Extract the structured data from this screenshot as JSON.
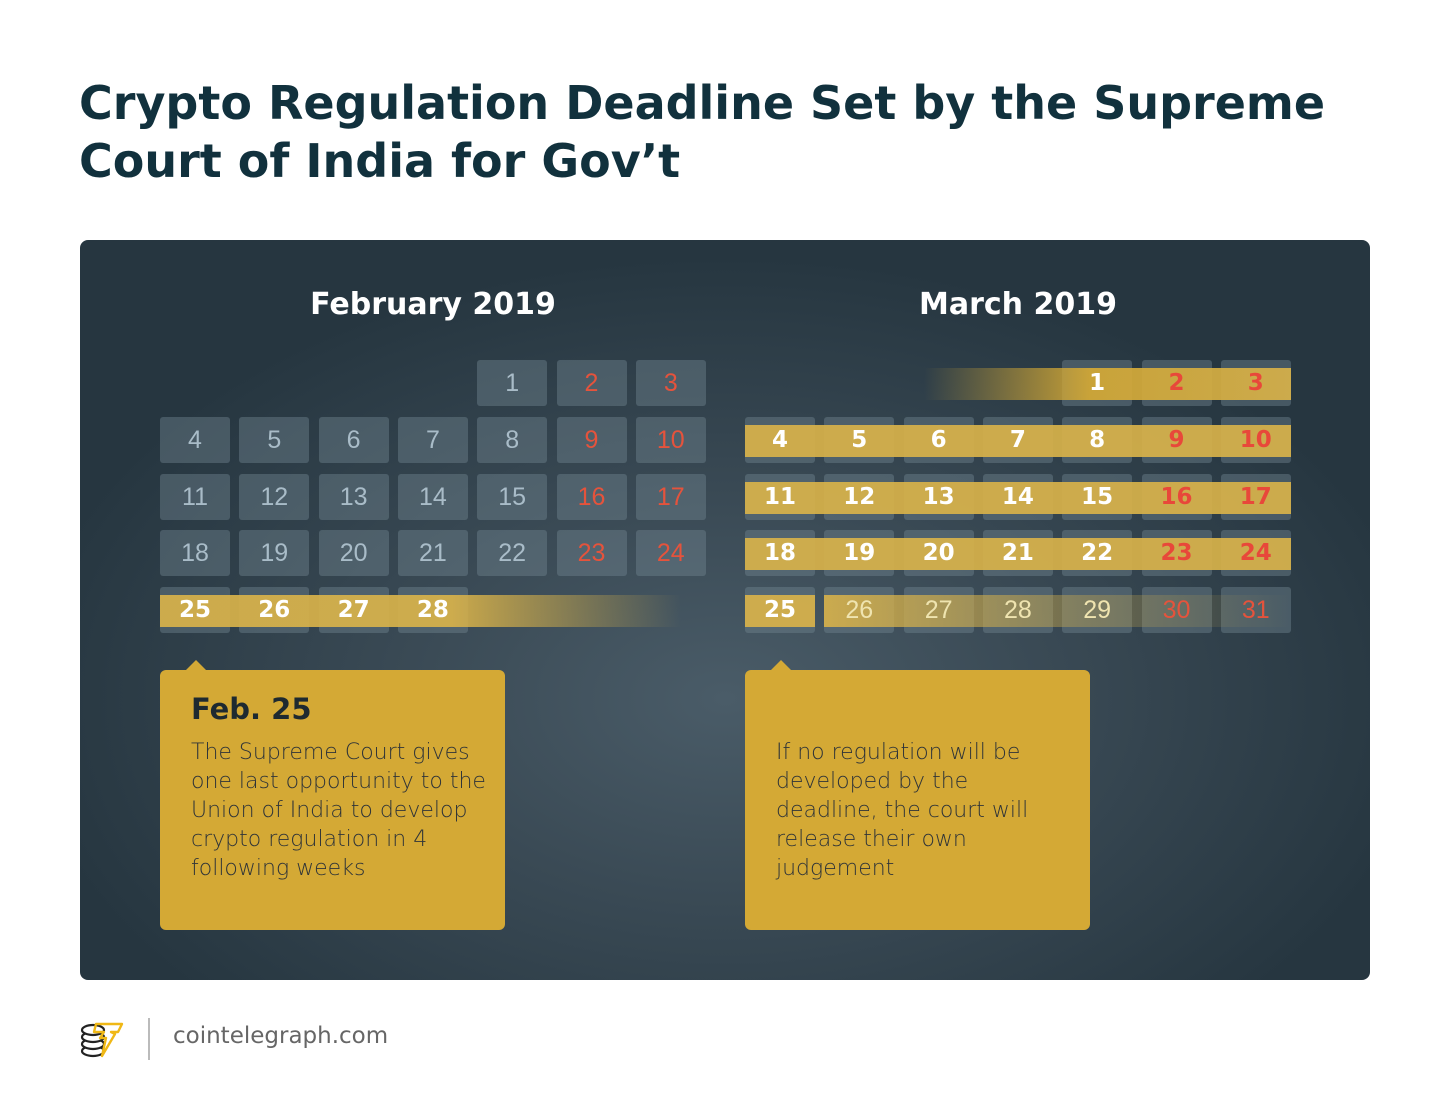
{
  "title": "Crypto Regulation Deadline Set by the Supreme Court of India for Gov’t",
  "colors": {
    "gold": "#d4a935",
    "weekend_red": "#e5533c",
    "panel": "#2f3f4a",
    "title": "#11313d"
  },
  "calendars": [
    {
      "month": "February 2019",
      "start_col": 4,
      "days": 28,
      "highlighted": [
        25,
        26,
        27,
        28
      ],
      "faded": []
    },
    {
      "month": "March 2019",
      "start_col": 4,
      "days": 31,
      "highlighted": [
        1,
        2,
        3,
        4,
        5,
        6,
        7,
        8,
        9,
        10,
        11,
        12,
        13,
        14,
        15,
        16,
        17,
        18,
        19,
        20,
        21,
        22,
        23,
        24,
        25
      ],
      "faded": [
        26,
        27,
        28,
        29,
        30,
        31
      ]
    }
  ],
  "callouts": [
    {
      "heading": "Feb. 25",
      "text": "The Supreme Court gives one last opportunity to the Union of India to develop crypto regulation in 4 following weeks"
    },
    {
      "heading": "",
      "text": "If no regulation will be developed by the deadline, the court will release their own judgement"
    }
  ],
  "footer": {
    "logo": "cointelegraph-logo-icon",
    "site": "cointelegraph.com"
  }
}
